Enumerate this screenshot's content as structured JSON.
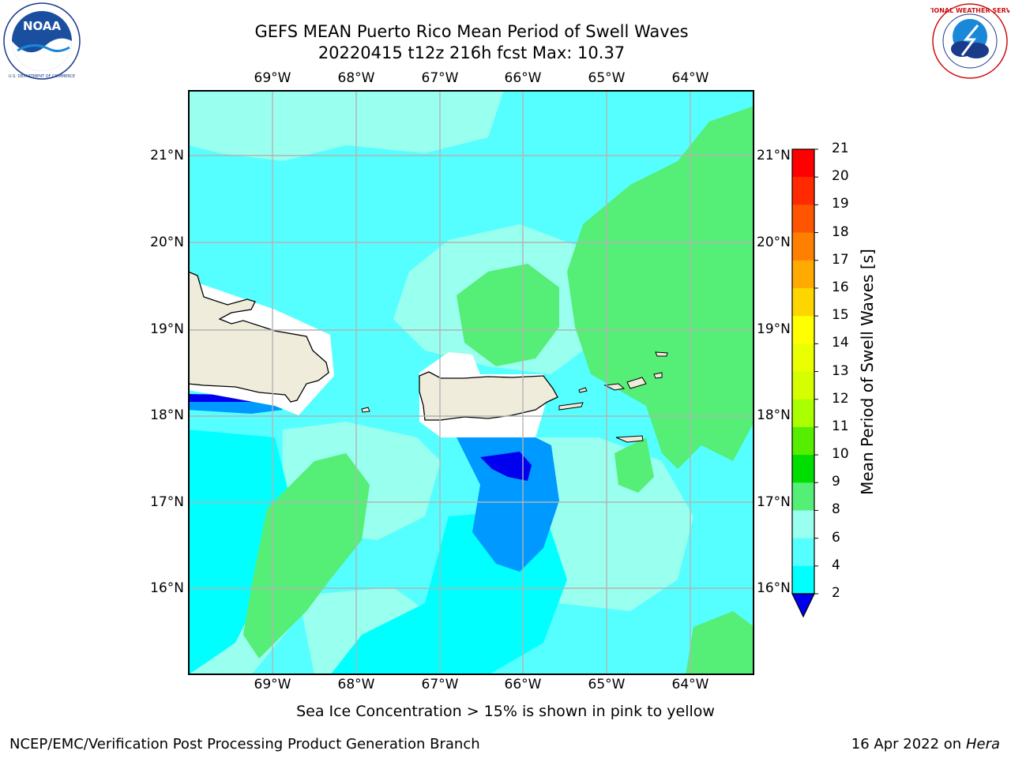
{
  "header": {
    "title_line1": "GEFS MEAN Puerto Rico Mean Period of Swell Waves",
    "title_line2": "20220415 t12z 216h fcst   Max: 10.37"
  },
  "logos": {
    "noaa_text": "NOAA",
    "noaa_ring_text": "NATIONAL OCEANIC AND ATMOSPHERIC ADMINISTRATION · U.S. DEPARTMENT OF COMMERCE",
    "nws_ring_text": "NATIONAL WEATHER SERVICE"
  },
  "map": {
    "lon_labels": [
      "69°W",
      "68°W",
      "67°W",
      "66°W",
      "65°W",
      "64°W"
    ],
    "lat_labels": [
      "21°N",
      "20°N",
      "19°N",
      "18°N",
      "17°N",
      "16°N"
    ],
    "grid": true,
    "extent": {
      "lon_min": -70.0,
      "lon_max": -63.25,
      "lat_min": 15.0,
      "lat_max": 21.75
    }
  },
  "colorbar": {
    "label": "Mean Period of Swell Waves [s]",
    "ticks": [
      "21",
      "20",
      "19",
      "18",
      "17",
      "16",
      "15",
      "14",
      "13",
      "12",
      "11",
      "10",
      "9",
      "8",
      "6",
      "4",
      "2"
    ],
    "colors": [
      "#ff0000",
      "#ff2a00",
      "#ff5500",
      "#ff8000",
      "#ffaa00",
      "#ffd500",
      "#ffff00",
      "#eaff00",
      "#d5ff00",
      "#aaff00",
      "#55ee00",
      "#00dd00",
      "#55ee77",
      "#99ffee",
      "#55ffff",
      "#00ffff",
      "#0099ff",
      "#0000ee"
    ],
    "extend": "min"
  },
  "chart_data": {
    "type": "heatmap",
    "title": "GEFS MEAN Puerto Rico Mean Period of Swell Waves",
    "subtitle": "20220415 t12z 216h fcst   Max: 10.37",
    "variable": "Mean Period of Swell Waves",
    "units": "s",
    "max": 10.37,
    "levels": [
      2,
      4,
      6,
      8,
      9,
      10,
      11,
      12,
      13,
      14,
      15,
      16,
      17,
      18,
      19,
      20,
      21
    ]
  },
  "footer": {
    "note": "Sea Ice Concentration > 15% is shown in pink to yellow",
    "credit_left": "NCEP/EMC/Verification Post Processing Product Generation Branch",
    "date_prefix": "16 Apr 2022 on ",
    "date_host": "Hera"
  }
}
